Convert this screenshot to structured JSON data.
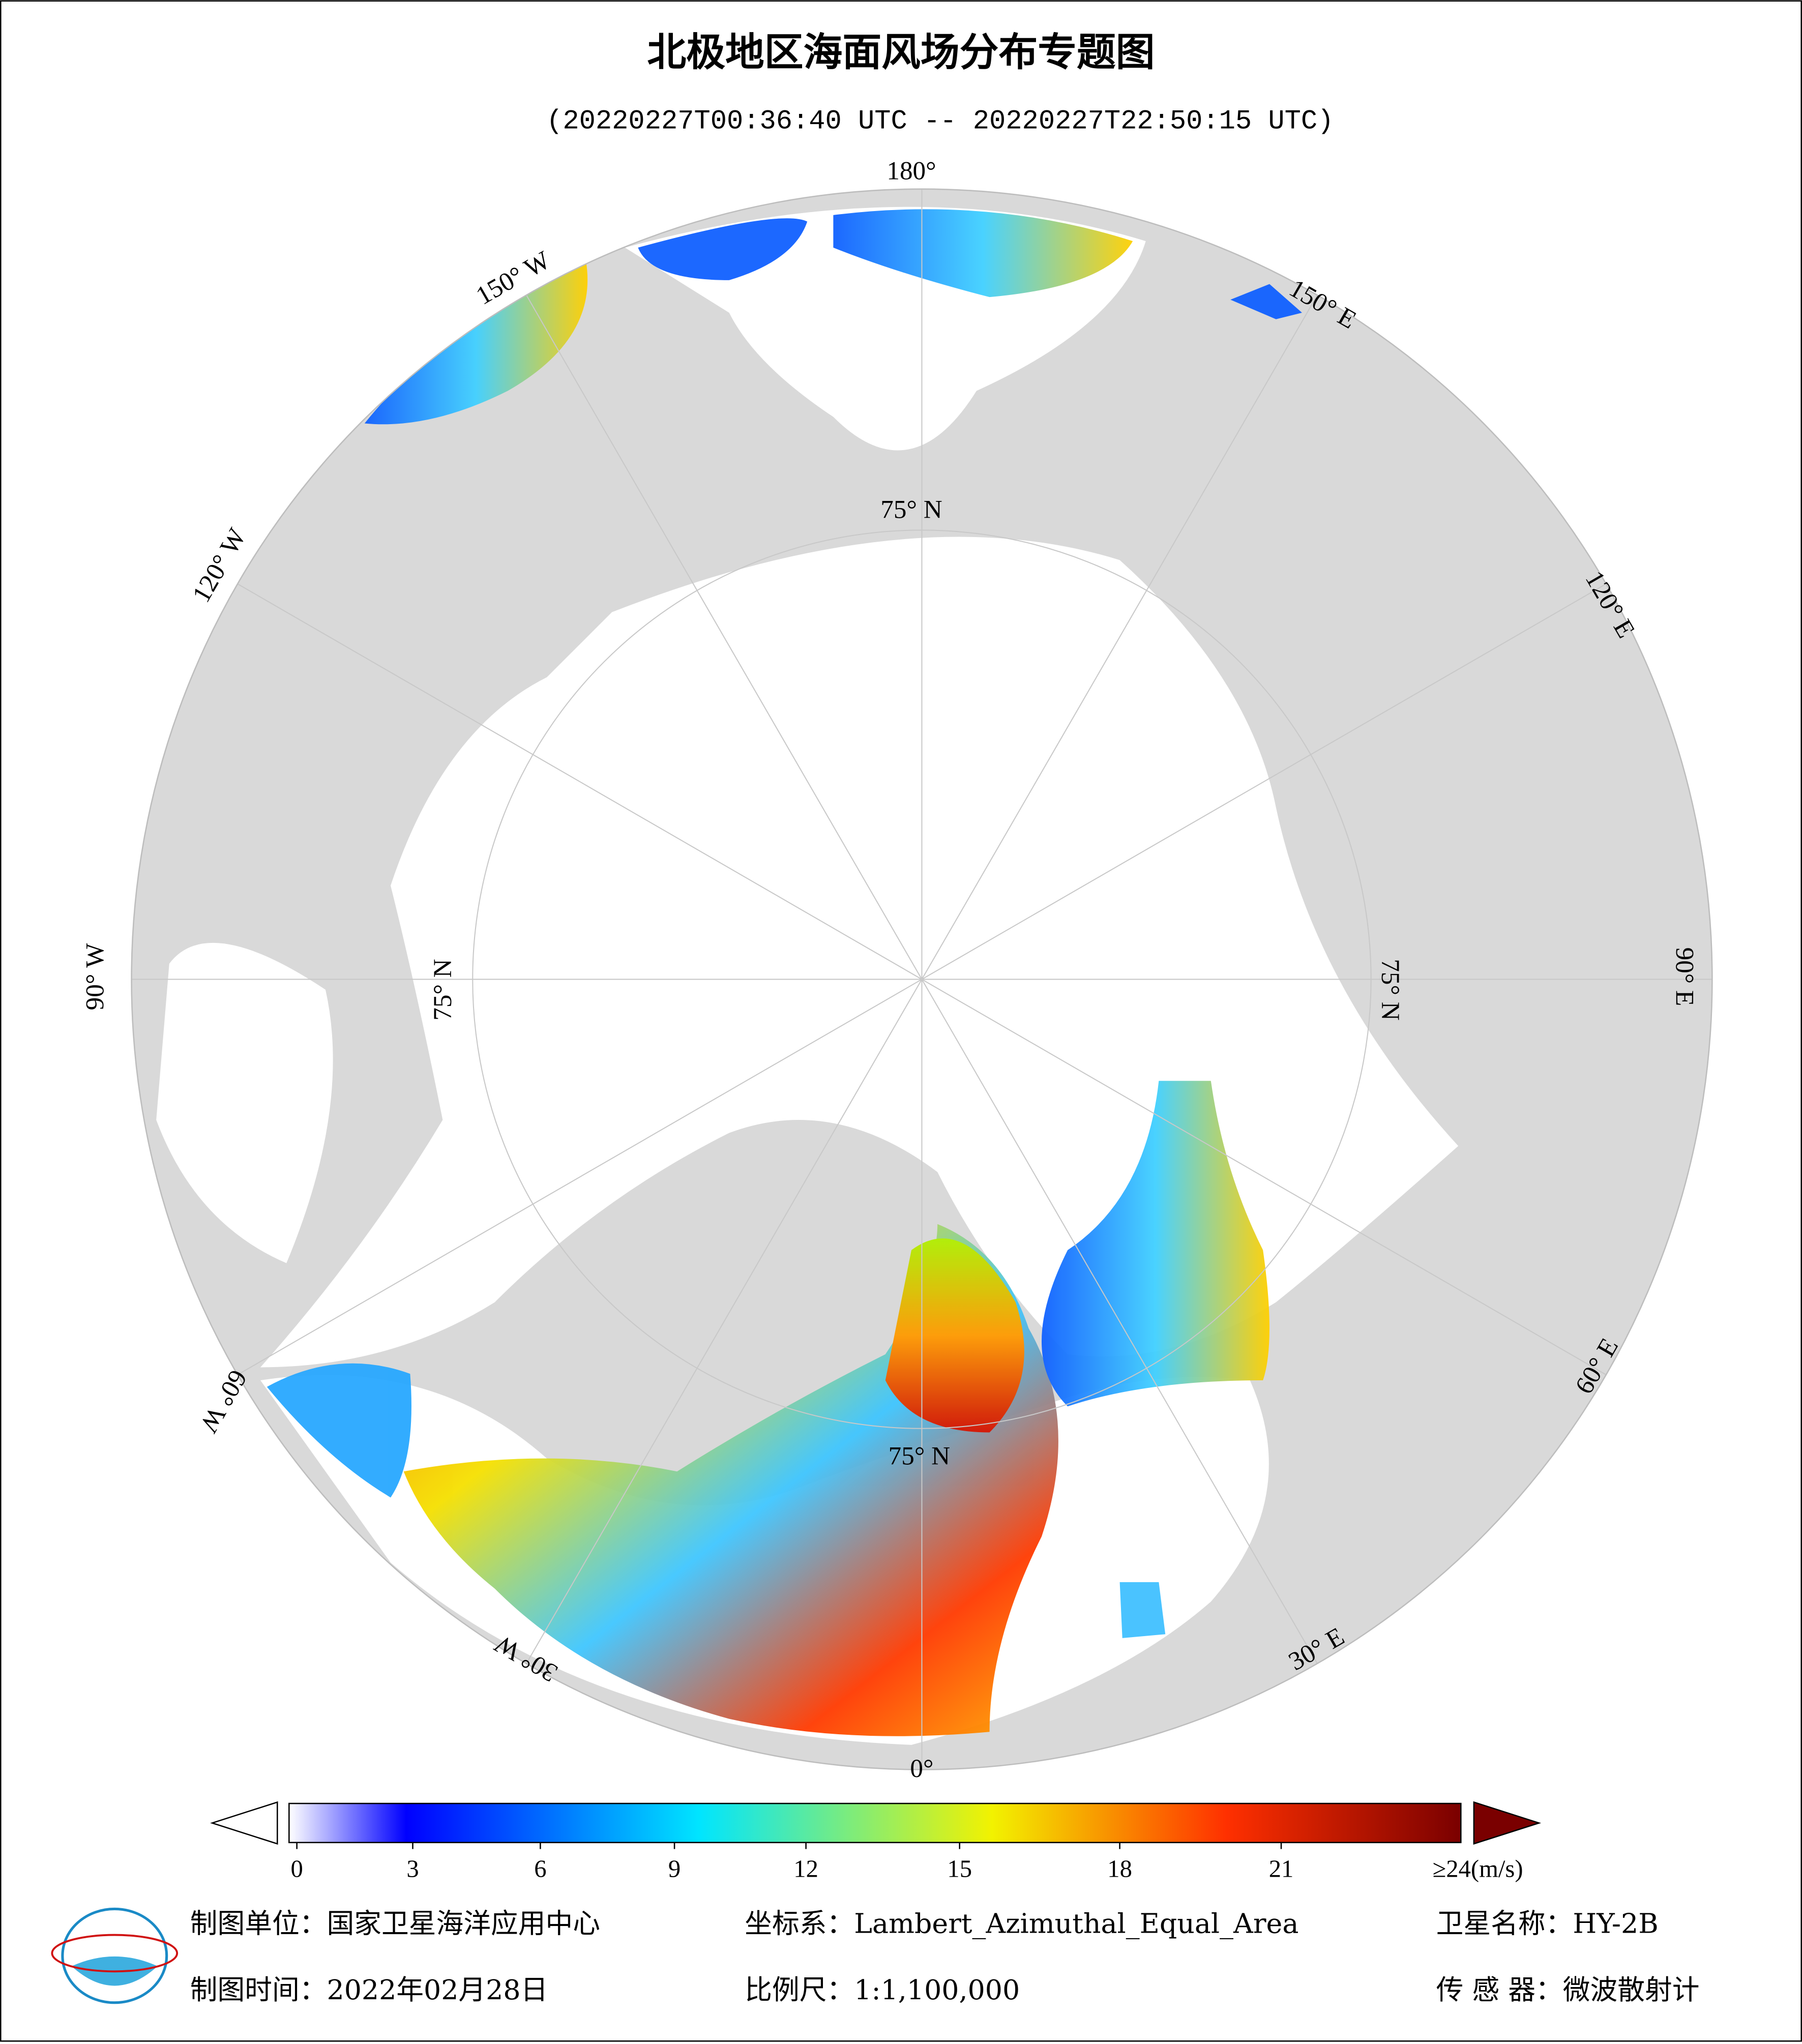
{
  "header": {
    "title": "北极地区海面风场分布专题图",
    "subtitle": "(20220227T00:36:40 UTC -- 20220227T22:50:15 UTC)"
  },
  "map": {
    "longitude_labels": [
      "180°",
      "150° E",
      "120° E",
      "90° E",
      "60° E",
      "30° E",
      "0°",
      "30° W",
      "60° W",
      "90° W",
      "120° W",
      "150° W"
    ],
    "latitude_labels": [
      "75° N",
      "75° N",
      "75° N",
      "75° N"
    ]
  },
  "colorbar": {
    "ticks": [
      0,
      3,
      6,
      9,
      12,
      15,
      18,
      21,
      {
        "value": 24,
        "label": "≥24(m/s)"
      }
    ]
  },
  "footer": {
    "agency": "制图单位：国家卫星海洋应用中心",
    "projection": "坐标系：Lambert_Azimuthal_Equal_Area",
    "satellite": "卫星名称：HY-2B",
    "date": "制图时间：2022年02月28日",
    "scale": "比例尺：1:1,100,000",
    "sensor": "传 感 器：微波散射计"
  }
}
